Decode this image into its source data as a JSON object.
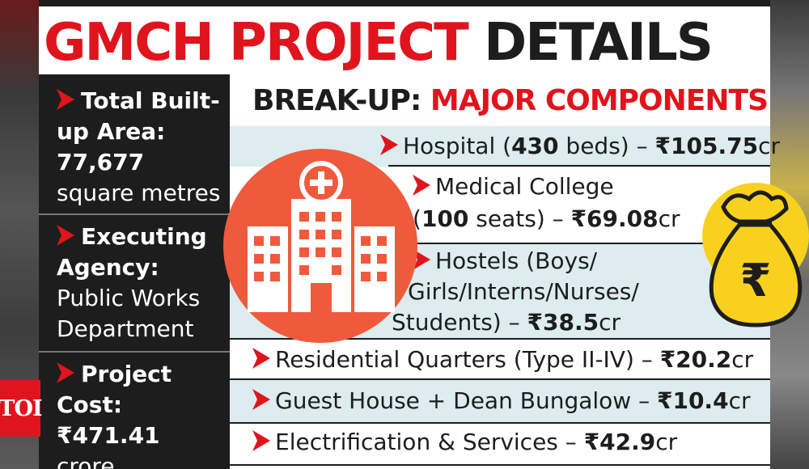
{
  "title": {
    "part1": "GMCH PROJECT",
    "part2": "DETAILS"
  },
  "left_panel": {
    "area": {
      "label": "Total Built-up Area:",
      "value": "77,677",
      "unit": "square metres"
    },
    "agency": {
      "label": "Executing Agency:",
      "value": "Public Works Department"
    },
    "cost": {
      "label": "Project Cost:",
      "value": "₹471.41",
      "unit": "crore"
    }
  },
  "breakup": {
    "heading_dark": "BREAK-UP:",
    "heading_red": "MAJOR COMPONENTS",
    "items": [
      {
        "pre": "Hospital (",
        "bold1": "430",
        "mid": " beds) – ",
        "bold2": "₹105.75",
        "post": "cr"
      },
      {
        "line1": "Medical College",
        "pre": "(",
        "bold1": "100",
        "mid": " seats) – ",
        "bold2": "₹69.08",
        "post": "cr"
      },
      {
        "line1": "Hostels (Boys/",
        "line2": "Girls/Interns/Nurses/",
        "pre": "Students) – ",
        "bold2": "₹38.5",
        "post": "cr"
      },
      {
        "pre": "Residential Quarters (Type II-IV) – ",
        "bold2": "₹20.2",
        "post": "cr"
      },
      {
        "pre": "Guest House + Dean Bungalow – ",
        "bold2": "₹10.4",
        "post": "cr"
      },
      {
        "pre": "Electrification & Services – ",
        "bold2": "₹42.9",
        "post": "cr"
      }
    ]
  },
  "badge": "TOI",
  "colors": {
    "red": "#e0141c",
    "dark": "#1d1d1d",
    "light_blue": "#dcecef",
    "orange": "#ef5a3c",
    "yellow": "#f7d11e"
  }
}
